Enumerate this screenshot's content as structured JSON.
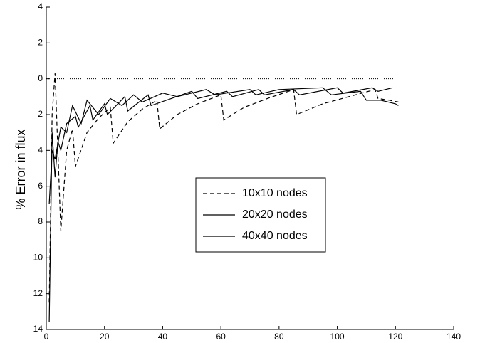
{
  "chart_data": {
    "type": "line",
    "y_label": "% Error in flux",
    "xlim": [
      0,
      140
    ],
    "xticks": [
      0,
      20,
      40,
      60,
      80,
      100,
      120,
      140
    ],
    "ylim": [
      -14,
      4
    ],
    "yticks": [
      4,
      2,
      0,
      {
        "value": -2,
        "label": "2"
      },
      {
        "value": -4,
        "label": "4"
      },
      {
        "value": -6,
        "label": "6"
      },
      {
        "value": -8,
        "label": "8"
      },
      {
        "value": -10,
        "label": "10"
      },
      {
        "value": -12,
        "label": "12"
      },
      {
        "value": -14,
        "label": "14"
      }
    ],
    "hline": 0,
    "series": [
      {
        "name": "10x10 nodes",
        "color": "#000000",
        "linestyle": "dashed",
        "x": [
          1,
          2,
          3,
          5,
          7,
          9,
          10,
          14,
          18,
          22,
          23,
          28,
          33,
          38,
          39,
          45,
          52,
          60,
          61,
          68,
          76,
          85,
          86,
          95,
          104,
          113,
          114,
          118,
          121
        ],
        "values": [
          -12.5,
          -2,
          0.3,
          -8.5,
          -4,
          -2.8,
          -4.9,
          -3,
          -2.2,
          -1.6,
          -3.6,
          -2.4,
          -1.7,
          -1.2,
          -2.8,
          -2,
          -1.4,
          -0.9,
          -2.3,
          -1.6,
          -1.1,
          -0.6,
          -2,
          -1.4,
          -1,
          -0.6,
          -1.1,
          -1.2,
          -1.3
        ]
      },
      {
        "name": "20x20 nodes",
        "color": "#000000",
        "linestyle": "solid",
        "x": [
          1,
          2,
          3,
          4,
          5,
          7,
          10,
          11,
          15,
          16,
          20,
          21,
          27,
          28,
          35,
          36,
          50,
          52,
          62,
          64,
          73,
          75,
          85,
          87,
          100,
          102,
          112,
          114,
          119
        ],
        "values": [
          -13.6,
          -3,
          -5.5,
          -3.5,
          -4,
          -2.5,
          -2.1,
          -2.7,
          -1.5,
          -2.3,
          -1.4,
          -2,
          -1,
          -1.8,
          -0.9,
          -1.5,
          -0.7,
          -1.1,
          -0.7,
          -1,
          -0.6,
          -0.9,
          -0.6,
          -0.9,
          -0.5,
          -0.8,
          -0.5,
          -0.7,
          -0.5
        ]
      },
      {
        "name": "40x40 nodes",
        "color": "#000000",
        "linestyle": "solid",
        "x": [
          1,
          2,
          3,
          5,
          7,
          9,
          12,
          14,
          18,
          22,
          26,
          30,
          33,
          40,
          45,
          55,
          58,
          70,
          72,
          80,
          95,
          98,
          108,
          110,
          115,
          120,
          121
        ],
        "values": [
          -7,
          -4,
          -4.5,
          -2.7,
          -3,
          -1.5,
          -2.5,
          -1.2,
          -2,
          -1.1,
          -1.5,
          -0.9,
          -1.3,
          -0.8,
          -1,
          -0.6,
          -0.9,
          -0.6,
          -0.9,
          -0.6,
          -0.5,
          -0.9,
          -0.7,
          -1.2,
          -1.2,
          -1.4,
          -1.5
        ]
      }
    ]
  }
}
